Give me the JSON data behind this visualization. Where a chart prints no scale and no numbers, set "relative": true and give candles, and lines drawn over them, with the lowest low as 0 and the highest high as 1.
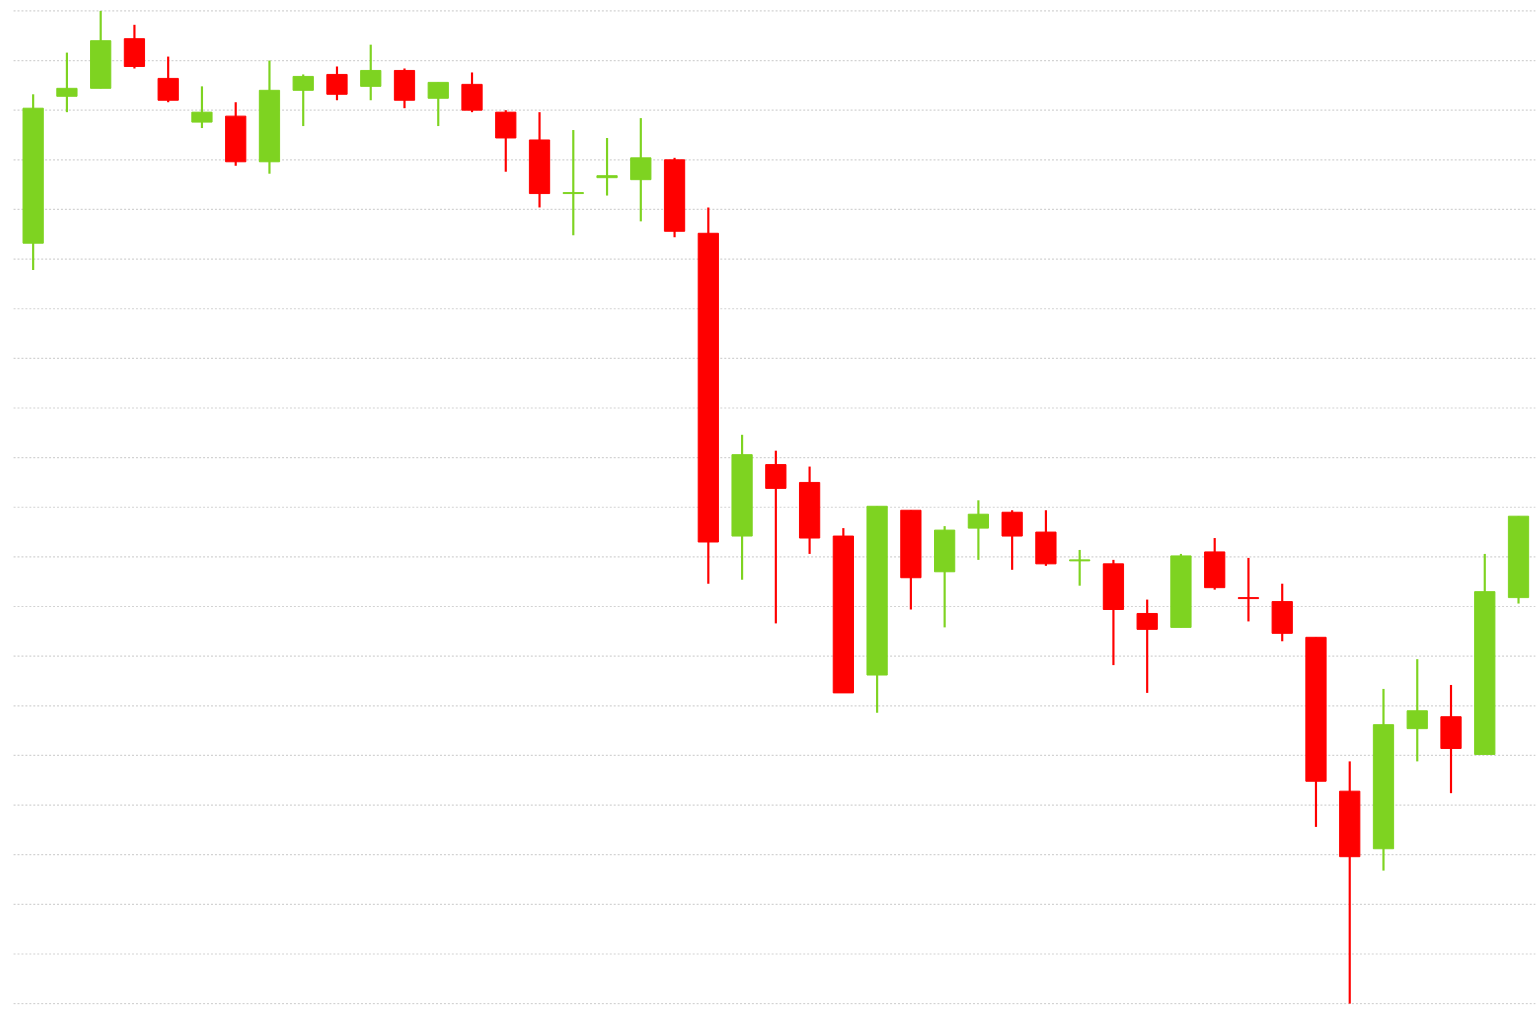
{
  "chart_data": {
    "type": "candlestick",
    "relative": true,
    "grid": "y",
    "categories": [
      null,
      null,
      null,
      null,
      null,
      null,
      null,
      null,
      null,
      null,
      null,
      null,
      null,
      null,
      null,
      null,
      null,
      null,
      null,
      null,
      null,
      null,
      null,
      null,
      null,
      null,
      null,
      null,
      null,
      null,
      null,
      null,
      null,
      null,
      null,
      null,
      null,
      null,
      null,
      null,
      null,
      null,
      null,
      null,
      null
    ],
    "ohlc": [
      [
        0.766,
        0.916,
        0.739,
        0.902
      ],
      [
        0.914,
        0.958,
        0.898,
        0.922
      ],
      [
        0.922,
        1,
        0.922,
        0.97
      ],
      [
        0.972,
        0.986,
        0.942,
        0.944
      ],
      [
        0.932,
        0.954,
        0.908,
        0.91
      ],
      [
        0.888,
        0.924,
        0.882,
        0.898
      ],
      [
        0.894,
        0.908,
        0.844,
        0.848
      ],
      [
        0.848,
        0.95,
        0.836,
        0.92
      ],
      [
        0.92,
        0.936,
        0.884,
        0.934
      ],
      [
        0.936,
        0.944,
        0.91,
        0.916
      ],
      [
        0.924,
        0.966,
        0.91,
        0.94
      ],
      [
        0.94,
        0.942,
        0.902,
        0.91
      ],
      [
        0.912,
        0.928,
        0.884,
        0.928
      ],
      [
        0.926,
        0.938,
        0.898,
        0.9
      ],
      [
        0.898,
        0.9,
        0.838,
        0.872
      ],
      [
        0.87,
        0.898,
        0.802,
        0.816
      ],
      [
        0.816,
        0.88,
        0.774,
        0.817
      ],
      [
        0.832,
        0.872,
        0.814,
        0.834
      ],
      [
        0.83,
        0.892,
        0.788,
        0.852
      ],
      [
        0.85,
        0.852,
        0.772,
        0.778
      ],
      [
        0.776,
        0.802,
        0.423,
        0.465
      ],
      [
        0.471,
        0.573,
        0.427,
        0.553
      ],
      [
        0.543,
        0.557,
        0.383,
        0.519
      ],
      [
        0.525,
        0.541,
        0.453,
        0.469
      ],
      [
        0.471,
        0.479,
        0.313,
        0.313
      ],
      [
        0.331,
        0.501,
        0.293,
        0.501
      ],
      [
        0.497,
        0.497,
        0.397,
        0.429
      ],
      [
        0.435,
        0.481,
        0.379,
        0.477
      ],
      [
        0.479,
        0.507,
        0.447,
        0.493
      ],
      [
        0.495,
        0.497,
        0.437,
        0.471
      ],
      [
        0.475,
        0.497,
        0.441,
        0.443
      ],
      [
        0.446,
        0.457,
        0.421,
        0.447
      ],
      [
        0.443,
        0.447,
        0.341,
        0.397
      ],
      [
        0.393,
        0.407,
        0.313,
        0.377
      ],
      [
        0.379,
        0.453,
        0.379,
        0.451
      ],
      [
        0.455,
        0.469,
        0.417,
        0.419
      ],
      [
        0.409,
        0.449,
        0.385,
        0.408
      ],
      [
        0.405,
        0.423,
        0.365,
        0.373
      ],
      [
        0.369,
        0.369,
        0.178,
        0.224
      ],
      [
        0.214,
        0.244,
        0,
        0.148
      ],
      [
        0.156,
        0.317,
        0.134,
        0.281
      ],
      [
        0.277,
        0.347,
        0.244,
        0.295
      ],
      [
        0.289,
        0.321,
        0.212,
        0.257
      ],
      [
        0.251,
        0.453,
        0.251,
        0.415
      ],
      [
        0.409,
        0.491,
        0.403,
        0.491
      ]
    ],
    "colors": [
      "#7ed321",
      "#7ed321",
      "#7ed321",
      "#ff0000",
      "#ff0000",
      "#7ed321",
      "#ff0000",
      "#7ed321",
      "#7ed321",
      "#ff0000",
      "#7ed321",
      "#ff0000",
      "#7ed321",
      "#ff0000",
      "#ff0000",
      "#ff0000",
      "#7ed321",
      "#7ed321",
      "#7ed321",
      "#ff0000",
      "#ff0000",
      "#7ed321",
      "#ff0000",
      "#ff0000",
      "#ff0000",
      "#7ed321",
      "#ff0000",
      "#7ed321",
      "#7ed321",
      "#ff0000",
      "#ff0000",
      "#7ed321",
      "#ff0000",
      "#ff0000",
      "#7ed321",
      "#ff0000",
      "#ff0000",
      "#ff0000",
      "#ff0000",
      "#ff0000",
      "#7ed321",
      "#7ed321",
      "#ff0000",
      "#7ed321",
      "#7ed321"
    ]
  }
}
